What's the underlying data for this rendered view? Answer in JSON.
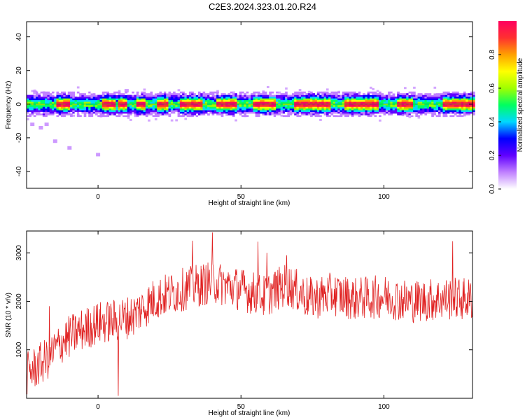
{
  "title": "C2E3.2024.323.01.20.R24",
  "colors": {
    "snr_line": "#e02020",
    "axis": "#000000",
    "colormap": [
      "#ffffff",
      "#c080ff",
      "#6000ff",
      "#0000ff",
      "#00d8ff",
      "#00ff60",
      "#a0ff00",
      "#ffff00",
      "#ffa000",
      "#ff3030",
      "#ff0060"
    ]
  },
  "chart_data": [
    {
      "type": "heatmap",
      "xlabel": "Height of straight line (km)",
      "ylabel": "Frequency (Hz)",
      "xlim": [
        -25,
        131
      ],
      "ylim": [
        -50,
        49
      ],
      "xticks": [
        0,
        50,
        100
      ],
      "yticks": [
        -40,
        -20,
        0,
        20,
        40
      ],
      "grid": false,
      "colorbar": {
        "label": "Normalized spectral amplitude",
        "range": [
          0,
          1
        ],
        "ticks": [
          0.0,
          0.2,
          0.4,
          0.6,
          0.8
        ],
        "tick_labels": [
          "0.0",
          "0.2",
          "0.4",
          "0.6",
          "0.8"
        ],
        "placement": "right"
      },
      "signal_band": {
        "center_hz": 0,
        "halfwidth_hz": 4
      },
      "strong_segments_km": [
        [
          -15,
          -10
        ],
        [
          1,
          6
        ],
        [
          7,
          10
        ],
        [
          13,
          16
        ],
        [
          20,
          24
        ],
        [
          28,
          36
        ],
        [
          41,
          48
        ],
        [
          54,
          62
        ],
        [
          68,
          81
        ],
        [
          86,
          98
        ],
        [
          104,
          110
        ],
        [
          120,
          131
        ]
      ],
      "scattered_points": [
        {
          "x": -23,
          "y": -12
        },
        {
          "x": -20,
          "y": -14
        },
        {
          "x": -18,
          "y": -12
        },
        {
          "x": -15,
          "y": -22
        },
        {
          "x": -10,
          "y": -26
        },
        {
          "x": 0,
          "y": -30
        },
        {
          "x": -22,
          "y": 7
        },
        {
          "x": 10,
          "y": 8
        }
      ]
    },
    {
      "type": "line",
      "xlabel": "Height of straight line (km)",
      "ylabel": "SNR (10 * v/v)",
      "xlim": [
        -25,
        131
      ],
      "ylim": [
        0,
        3450
      ],
      "xticks": [
        0,
        50,
        100
      ],
      "yticks": [
        1000,
        2000,
        3000
      ],
      "grid": false,
      "trend": {
        "x": [
          -25,
          -18,
          -12,
          -6,
          0,
          6,
          12,
          20,
          30,
          40,
          50,
          58,
          66,
          74,
          82,
          90,
          100,
          110,
          120,
          131
        ],
        "y": [
          500,
          800,
          1200,
          1400,
          1550,
          1600,
          1700,
          2050,
          2250,
          2400,
          2250,
          2100,
          2350,
          2050,
          2150,
          2050,
          2100,
          2000,
          2050,
          2050
        ]
      },
      "noise_amplitude": 450,
      "peaks": [
        {
          "x": 40,
          "y": 3420
        },
        {
          "x": 33,
          "y": 3250
        },
        {
          "x": 56,
          "y": 3230
        },
        {
          "x": 124,
          "y": 3240
        },
        {
          "x": 59,
          "y": 3000
        },
        {
          "x": 66,
          "y": 2950
        },
        {
          "x": 7,
          "y": 50
        },
        {
          "x": -17,
          "y": 1900
        }
      ]
    }
  ]
}
